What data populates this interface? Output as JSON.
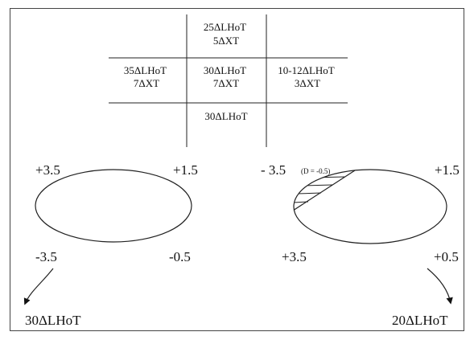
{
  "grid": {
    "top": {
      "line1": "25ΔLHoT",
      "line2": "5ΔXT"
    },
    "left": {
      "line1": "35ΔLHoT",
      "line2": "7ΔXT"
    },
    "center": {
      "line1": "30ΔLHoT",
      "line2": "7ΔXT"
    },
    "right": {
      "line1": "10-12ΔLHoT",
      "line2": "3ΔXT"
    },
    "bottom": {
      "line1": "30ΔLHoT"
    }
  },
  "left_lens": {
    "top_left": "+3.5",
    "top_right": "+1.5",
    "bottom_left": "-3.5",
    "bottom_right": "-0.5",
    "result": "30ΔLHoT"
  },
  "right_lens": {
    "top_left": "- 3.5",
    "top_left_note": "(D = -0.5)",
    "top_right": "+1.5",
    "bottom_left": "+3.5",
    "bottom_right": "+0.5",
    "result": "20ΔLHoT"
  }
}
